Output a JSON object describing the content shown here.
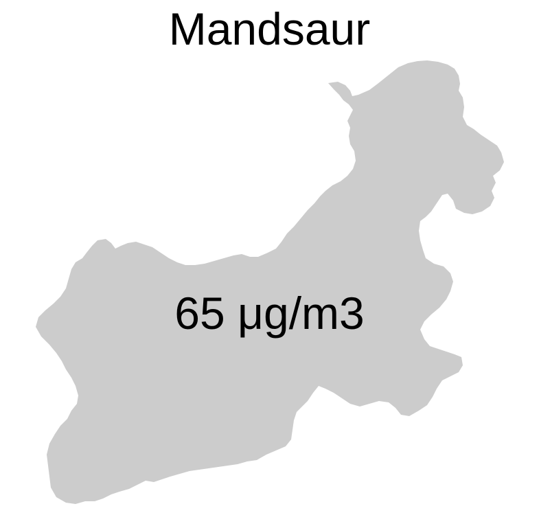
{
  "map": {
    "title": "Mandsaur",
    "region": {
      "name": "Mandsaur",
      "value_label": "65 μg/m3",
      "value": 65,
      "unit": "μg/m3",
      "fill_color": "#cccccc"
    }
  }
}
